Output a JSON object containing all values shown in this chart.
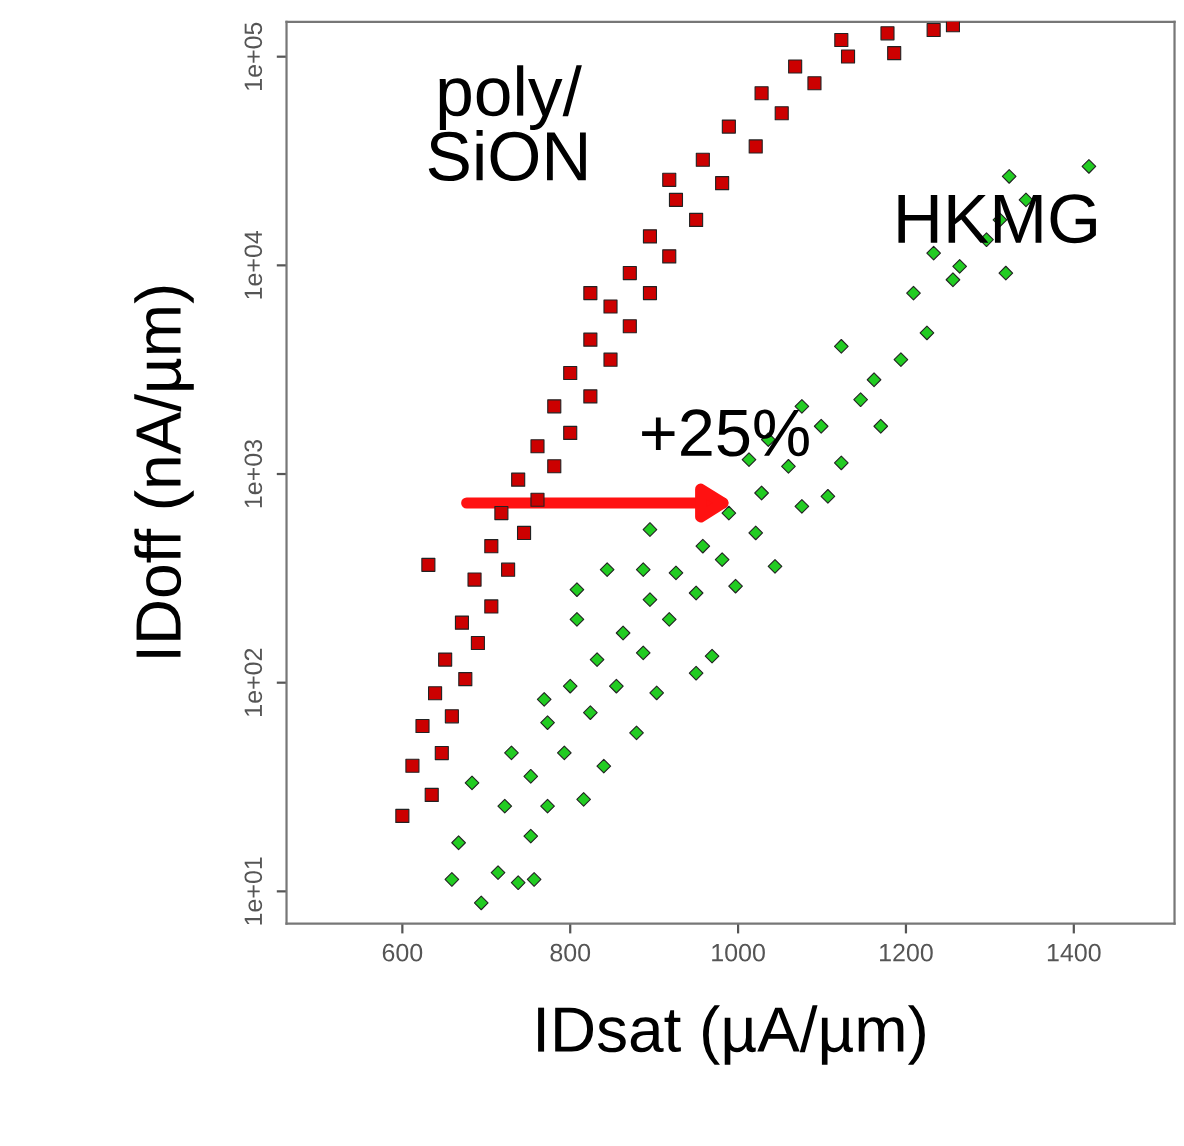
{
  "chart_data": {
    "type": "scatter",
    "xlabel": "IDsat (µA/µm)",
    "ylabel": "IDoff (nA/µm)",
    "log": "y",
    "xlim": [
      462,
      1520
    ],
    "ylim": [
      7,
      147000
    ],
    "xticks": [
      600,
      800,
      1000,
      1200,
      1400
    ],
    "yticks": [
      {
        "value": 10,
        "label": "1e+01"
      },
      {
        "value": 100,
        "label": "1e+02"
      },
      {
        "value": 1000,
        "label": "1e+03"
      },
      {
        "value": 10000,
        "label": "1e+04"
      },
      {
        "value": 100000,
        "label": "1e+05"
      }
    ],
    "grid": false,
    "legend": false,
    "annotations": [
      {
        "text": "+25%",
        "x": 1001,
        "y": 726
      }
    ],
    "series": [
      {
        "name": "poly/\nSiON",
        "color": "#cc0000",
        "marker": "square",
        "x": [
          600,
          635,
          612,
          647,
          624,
          659,
          639,
          675,
          651,
          690,
          671,
          706,
          686,
          726,
          631,
          706,
          745,
          718,
          761,
          738,
          781,
          761,
          800,
          781,
          824,
          800,
          848,
          824,
          871,
          848,
          895,
          871,
          918,
          895,
          950,
          926,
          981,
          958,
          1021,
          989,
          1052,
          1028,
          1091,
          1068,
          1131,
          1123,
          1186,
          1178,
          1233,
          1256,
          918,
          824
        ],
        "values": [
          23,
          29,
          40,
          46,
          62,
          69,
          89,
          104,
          129,
          155,
          194,
          232,
          312,
          348,
          367,
          451,
          522,
          650,
          753,
          940,
          1089,
          1358,
          1574,
          2110,
          2355,
          3048,
          3532,
          4406,
          5105,
          6353,
          7362,
          9184,
          11040,
          13770,
          16520,
          20600,
          24770,
          32060,
          37150,
          46240,
          53580,
          66800,
          74610,
          89740,
          100200,
          120200,
          104000,
          129400,
          134300,
          141500,
          25700,
          7362
        ]
      },
      {
        "name": "HKMG",
        "color": "#22cc22",
        "marker": "diamond",
        "x": [
          694,
          659,
          738,
          757,
          714,
          667,
          753,
          722,
          683,
          773,
          816,
          753,
          730,
          793,
          840,
          773,
          824,
          879,
          800,
          855,
          769,
          903,
          832,
          887,
          950,
          863,
          918,
          969,
          808,
          895,
          950,
          808,
          997,
          926,
          887,
          981,
          1044,
          844,
          958,
          1021,
          895,
          989,
          1076,
          1107,
          1028,
          1060,
          1013,
          1123,
          1036,
          1099,
          1170,
          1076,
          1146,
          1123,
          1162,
          1194,
          1225,
          1209,
          1256,
          1264,
          1319,
          1296,
          1233,
          1343,
          1323,
          1418,
          1312
        ],
        "values": [
          8.8,
          11.4,
          11.0,
          11.4,
          12.3,
          17.1,
          18.4,
          25.6,
          33.1,
          25.6,
          27.6,
          35.6,
          46.1,
          46.1,
          39.8,
          64.3,
          71.8,
          57.5,
          96.2,
          96.2,
          83.2,
          89.3,
          129,
          139,
          111,
          173,
          201,
          134,
          201,
          250,
          269,
          279,
          290,
          336,
          348,
          389,
          361,
          348,
          451,
          522,
          542,
          650,
          700,
          782,
          811,
          1089,
          1172,
          1130,
          1462,
          1694,
          1694,
          2110,
          2270,
          4093,
          2830,
          3532,
          4743,
          7362,
          8531,
          9886,
          9184,
          13270,
          11450,
          20600,
          26670,
          29790,
          16520
        ]
      }
    ]
  }
}
